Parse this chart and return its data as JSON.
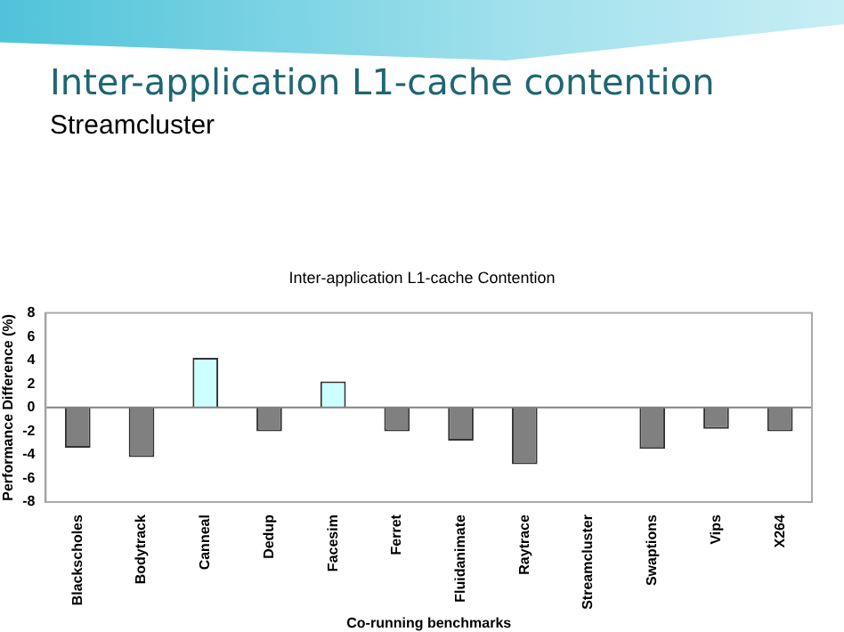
{
  "chart_data": {
    "type": "bar",
    "title": "Inter-application L1-cache contention",
    "subtitle": "Streamcluster",
    "annotations": [
      "Inter-application L1-cache Contention"
    ],
    "xlabel": "Co-running benchmarks",
    "ylabel": "Performance Difference (%)",
    "categories": [
      "Blackscholes",
      "Bodytrack",
      "Canneal",
      "Dedup",
      "Facesim",
      "Ferret",
      "Fluidanimate",
      "Raytrace",
      "Streamcluster",
      "Swaptions",
      "Vips",
      "X264"
    ],
    "values": [
      -3.4,
      -4.2,
      4.2,
      -2,
      2.2,
      -2,
      -2.8,
      -4.8,
      0,
      -3.5,
      -1.8,
      -2
    ],
    "colors": [
      "#808080",
      "#808080",
      "#ccffff",
      "#808080",
      "#ccffff",
      "#808080",
      "#808080",
      "#808080",
      "#808080",
      "#808080",
      "#808080",
      "#808080"
    ],
    "ylim": [
      -8,
      8
    ],
    "yticks": [
      -8,
      -6,
      -4,
      -2,
      0,
      2,
      4,
      6,
      8
    ],
    "legend": false
  }
}
